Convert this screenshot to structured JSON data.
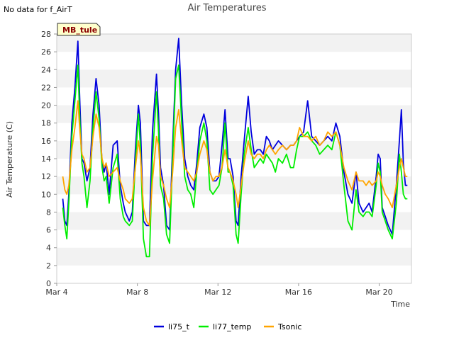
{
  "notice": "No data for f_AirT",
  "badge": "MB_tule",
  "chart_data": {
    "type": "line",
    "title": "Air Temperatures",
    "xlabel": "Time",
    "ylabel": "Air Temperature (C)",
    "xlim": [
      4.0,
      21.6
    ],
    "ylim": [
      0,
      28
    ],
    "yticks": [
      0,
      2,
      4,
      6,
      8,
      10,
      12,
      14,
      16,
      18,
      20,
      22,
      24,
      26,
      28
    ],
    "xticks": [
      {
        "value": 4,
        "label": "Mar 4"
      },
      {
        "value": 8,
        "label": "Mar 8"
      },
      {
        "value": 12,
        "label": "Mar 12"
      },
      {
        "value": 16,
        "label": "Mar 16"
      },
      {
        "value": 20,
        "label": "Mar 20"
      }
    ],
    "grid": "horizontal bands",
    "legend_position": "bottom",
    "series": [
      {
        "name": "li75_t",
        "color": "#0000dd",
        "x": [
          4.3,
          4.4,
          4.5,
          4.6,
          4.75,
          4.9,
          5.05,
          5.15,
          5.25,
          5.35,
          5.5,
          5.65,
          5.8,
          5.95,
          6.1,
          6.25,
          6.35,
          6.45,
          6.6,
          6.8,
          7.0,
          7.15,
          7.3,
          7.4,
          7.6,
          7.75,
          7.9,
          8.05,
          8.15,
          8.3,
          8.45,
          8.6,
          8.75,
          8.95,
          9.05,
          9.15,
          9.3,
          9.45,
          9.6,
          9.75,
          9.9,
          10.05,
          10.2,
          10.35,
          10.5,
          10.65,
          10.8,
          10.95,
          11.1,
          11.3,
          11.45,
          11.6,
          11.75,
          11.9,
          12.05,
          12.2,
          12.35,
          12.5,
          12.6,
          12.75,
          12.9,
          13.0,
          13.15,
          13.3,
          13.5,
          13.65,
          13.8,
          13.95,
          14.1,
          14.25,
          14.4,
          14.55,
          14.7,
          14.85,
          15.0,
          15.2,
          15.4,
          15.6,
          15.75,
          15.9,
          16.05,
          16.25,
          16.45,
          16.65,
          16.85,
          17.05,
          17.25,
          17.45,
          17.65,
          17.85,
          18.05,
          18.25,
          18.45,
          18.65,
          18.85,
          19.0,
          19.2,
          19.35,
          19.5,
          19.65,
          19.85,
          19.95,
          20.05,
          20.15,
          20.3,
          20.45,
          20.65,
          20.85,
          21.0,
          21.1,
          21.2,
          21.3,
          21.4
        ],
        "values": [
          9.5,
          7.0,
          6.5,
          10.0,
          18.0,
          22.0,
          27.2,
          20.0,
          14.0,
          13.5,
          11.5,
          13.0,
          19.0,
          23.0,
          20.0,
          13.5,
          12.5,
          13.5,
          10.0,
          15.5,
          16.0,
          11.0,
          9.0,
          8.0,
          7.0,
          8.0,
          15.0,
          20.0,
          18.0,
          7.0,
          6.5,
          6.5,
          17.0,
          23.5,
          19.0,
          13.0,
          11.0,
          6.5,
          6.0,
          15.5,
          24.0,
          27.5,
          20.0,
          14.0,
          12.0,
          11.0,
          10.5,
          13.5,
          17.5,
          19.0,
          17.5,
          12.5,
          11.5,
          11.5,
          12.0,
          15.5,
          19.5,
          14.0,
          14.0,
          12.0,
          7.0,
          6.5,
          12.0,
          16.0,
          21.0,
          17.0,
          14.5,
          15.0,
          15.0,
          14.5,
          16.5,
          16.0,
          15.0,
          15.5,
          16.0,
          15.5,
          15.0,
          15.5,
          15.5,
          16.0,
          16.5,
          17.0,
          20.5,
          16.5,
          16.0,
          15.5,
          16.0,
          16.5,
          16.0,
          18.0,
          16.5,
          12.5,
          10.0,
          9.0,
          12.5,
          9.0,
          8.0,
          8.5,
          9.0,
          8.0,
          12.0,
          14.5,
          14.0,
          8.5,
          7.5,
          6.5,
          5.5,
          11.0,
          16.0,
          19.5,
          13.5,
          11.0,
          11.0
        ]
      },
      {
        "name": "li77_temp",
        "color": "#00ee00",
        "x": [
          4.3,
          4.4,
          4.5,
          4.6,
          4.75,
          4.9,
          5.05,
          5.15,
          5.25,
          5.35,
          5.5,
          5.65,
          5.8,
          5.95,
          6.1,
          6.25,
          6.35,
          6.45,
          6.6,
          6.8,
          7.0,
          7.15,
          7.3,
          7.4,
          7.6,
          7.75,
          7.9,
          8.05,
          8.15,
          8.3,
          8.45,
          8.6,
          8.75,
          8.95,
          9.05,
          9.15,
          9.3,
          9.45,
          9.6,
          9.75,
          9.9,
          10.05,
          10.2,
          10.35,
          10.5,
          10.65,
          10.8,
          10.95,
          11.1,
          11.3,
          11.45,
          11.6,
          11.75,
          11.9,
          12.05,
          12.2,
          12.35,
          12.5,
          12.6,
          12.75,
          12.9,
          13.0,
          13.15,
          13.3,
          13.5,
          13.65,
          13.8,
          13.95,
          14.1,
          14.25,
          14.4,
          14.55,
          14.7,
          14.85,
          15.0,
          15.2,
          15.4,
          15.6,
          15.75,
          15.9,
          16.05,
          16.25,
          16.45,
          16.65,
          16.85,
          17.05,
          17.25,
          17.45,
          17.65,
          17.85,
          18.05,
          18.25,
          18.45,
          18.65,
          18.85,
          19.0,
          19.2,
          19.35,
          19.5,
          19.65,
          19.85,
          19.95,
          20.05,
          20.15,
          20.3,
          20.45,
          20.65,
          20.85,
          21.0,
          21.1,
          21.2,
          21.3,
          21.4
        ],
        "values": [
          8.5,
          6.5,
          5.0,
          9.0,
          16.5,
          20.5,
          24.5,
          18.0,
          13.5,
          12.0,
          8.5,
          11.5,
          17.5,
          21.5,
          18.5,
          13.0,
          11.5,
          12.0,
          9.0,
          13.0,
          14.5,
          9.5,
          7.5,
          7.0,
          6.5,
          7.0,
          13.5,
          19.0,
          15.5,
          5.0,
          3.0,
          3.0,
          14.0,
          21.5,
          17.0,
          11.0,
          9.5,
          5.5,
          4.5,
          14.0,
          23.0,
          24.5,
          18.0,
          12.0,
          10.5,
          10.0,
          8.5,
          12.5,
          16.0,
          18.0,
          16.0,
          10.5,
          10.0,
          10.5,
          11.0,
          13.0,
          18.0,
          12.5,
          12.5,
          11.0,
          5.5,
          4.5,
          10.0,
          14.5,
          17.5,
          15.0,
          13.0,
          13.5,
          14.0,
          13.5,
          14.5,
          14.0,
          13.5,
          12.5,
          14.0,
          13.5,
          14.5,
          13.0,
          13.0,
          15.0,
          16.5,
          16.5,
          17.0,
          16.0,
          15.5,
          14.5,
          15.0,
          15.5,
          15.0,
          17.0,
          15.5,
          11.0,
          7.0,
          6.0,
          10.5,
          8.0,
          7.5,
          8.0,
          8.0,
          7.5,
          11.0,
          13.5,
          12.5,
          8.0,
          7.0,
          6.0,
          5.0,
          9.0,
          14.5,
          12.5,
          10.0,
          9.5,
          9.5
        ]
      },
      {
        "name": "Tsonic",
        "color": "#ffa500",
        "x": [
          4.3,
          4.4,
          4.5,
          4.6,
          4.75,
          4.9,
          5.05,
          5.15,
          5.25,
          5.35,
          5.5,
          5.65,
          5.8,
          5.95,
          6.1,
          6.25,
          6.35,
          6.45,
          6.6,
          6.8,
          7.0,
          7.15,
          7.3,
          7.4,
          7.6,
          7.75,
          7.9,
          8.05,
          8.15,
          8.3,
          8.45,
          8.6,
          8.75,
          8.95,
          9.05,
          9.15,
          9.3,
          9.45,
          9.6,
          9.75,
          9.9,
          10.05,
          10.2,
          10.35,
          10.5,
          10.65,
          10.8,
          10.95,
          11.1,
          11.3,
          11.45,
          11.6,
          11.75,
          11.9,
          12.05,
          12.2,
          12.35,
          12.5,
          12.6,
          12.75,
          12.9,
          13.0,
          13.15,
          13.3,
          13.5,
          13.65,
          13.8,
          13.95,
          14.1,
          14.25,
          14.4,
          14.55,
          14.7,
          14.85,
          15.0,
          15.2,
          15.4,
          15.6,
          15.75,
          15.9,
          16.05,
          16.25,
          16.45,
          16.65,
          16.85,
          17.05,
          17.25,
          17.45,
          17.65,
          17.85,
          18.05,
          18.25,
          18.45,
          18.65,
          18.85,
          19.0,
          19.2,
          19.35,
          19.5,
          19.65,
          19.85,
          19.95,
          20.05,
          20.15,
          20.3,
          20.45,
          20.65,
          20.85,
          21.0,
          21.1,
          21.2,
          21.3,
          21.4
        ],
        "values": [
          12.0,
          10.5,
          10.0,
          11.0,
          15.0,
          17.5,
          20.5,
          17.0,
          14.5,
          14.0,
          12.5,
          13.0,
          16.5,
          19.0,
          17.5,
          14.0,
          13.0,
          13.5,
          12.0,
          12.5,
          13.0,
          11.5,
          10.5,
          9.5,
          9.0,
          9.5,
          13.0,
          16.0,
          14.5,
          8.5,
          7.0,
          6.5,
          11.5,
          16.5,
          15.5,
          12.0,
          11.0,
          9.5,
          8.5,
          12.5,
          17.5,
          19.5,
          16.0,
          13.0,
          12.5,
          12.0,
          11.5,
          12.5,
          14.5,
          16.0,
          15.0,
          12.5,
          11.5,
          12.0,
          12.0,
          13.0,
          15.0,
          13.0,
          12.5,
          11.5,
          10.0,
          8.5,
          11.0,
          13.5,
          16.0,
          14.5,
          14.0,
          14.5,
          14.5,
          14.0,
          15.0,
          15.5,
          15.0,
          14.5,
          15.0,
          15.5,
          15.0,
          15.5,
          15.5,
          16.0,
          17.5,
          16.5,
          16.5,
          16.0,
          16.5,
          15.5,
          16.0,
          17.0,
          16.5,
          17.0,
          15.5,
          13.0,
          11.5,
          10.5,
          12.5,
          11.5,
          11.5,
          11.0,
          11.5,
          11.0,
          11.5,
          12.5,
          12.0,
          11.0,
          10.0,
          9.5,
          8.5,
          11.0,
          13.0,
          14.0,
          13.0,
          12.0,
          12.0
        ]
      }
    ]
  }
}
